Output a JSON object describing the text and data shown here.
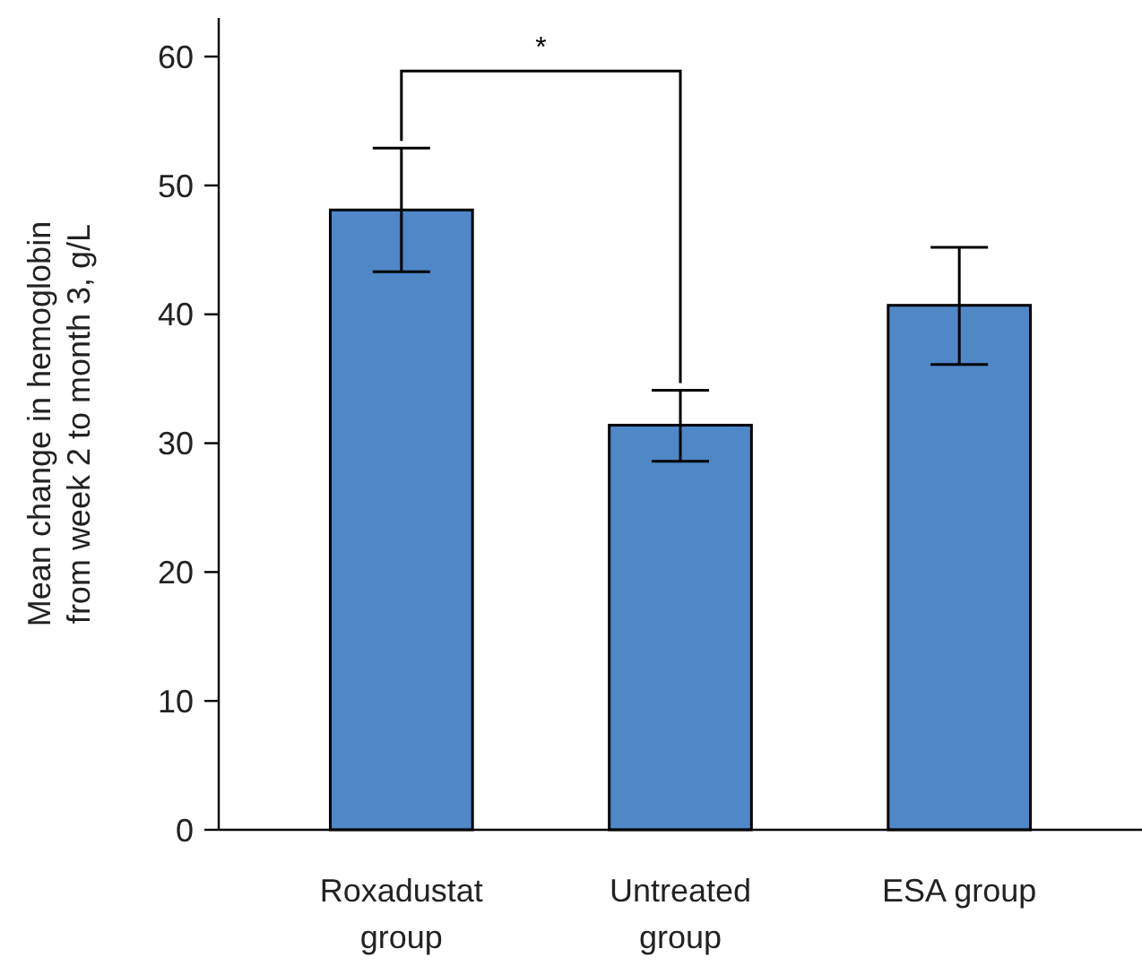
{
  "chart_data": {
    "type": "bar",
    "ylabel": "Mean change in hemoglobin\nfrom week 2 to month 3, g/L",
    "categories": [
      "Roxadustat\ngroup",
      "Untreated\ngroup",
      "ESA group"
    ],
    "values": [
      48.1,
      31.4,
      40.7
    ],
    "color": "#4f87c7",
    "errors": [
      [
        43.3,
        52.9
      ],
      [
        28.6,
        34.1
      ],
      [
        36.1,
        45.2
      ]
    ],
    "ylim": [
      0,
      63
    ],
    "yticks": [
      0,
      10,
      20,
      30,
      40,
      50,
      60
    ],
    "grid": false,
    "annotations": [
      "*"
    ]
  }
}
